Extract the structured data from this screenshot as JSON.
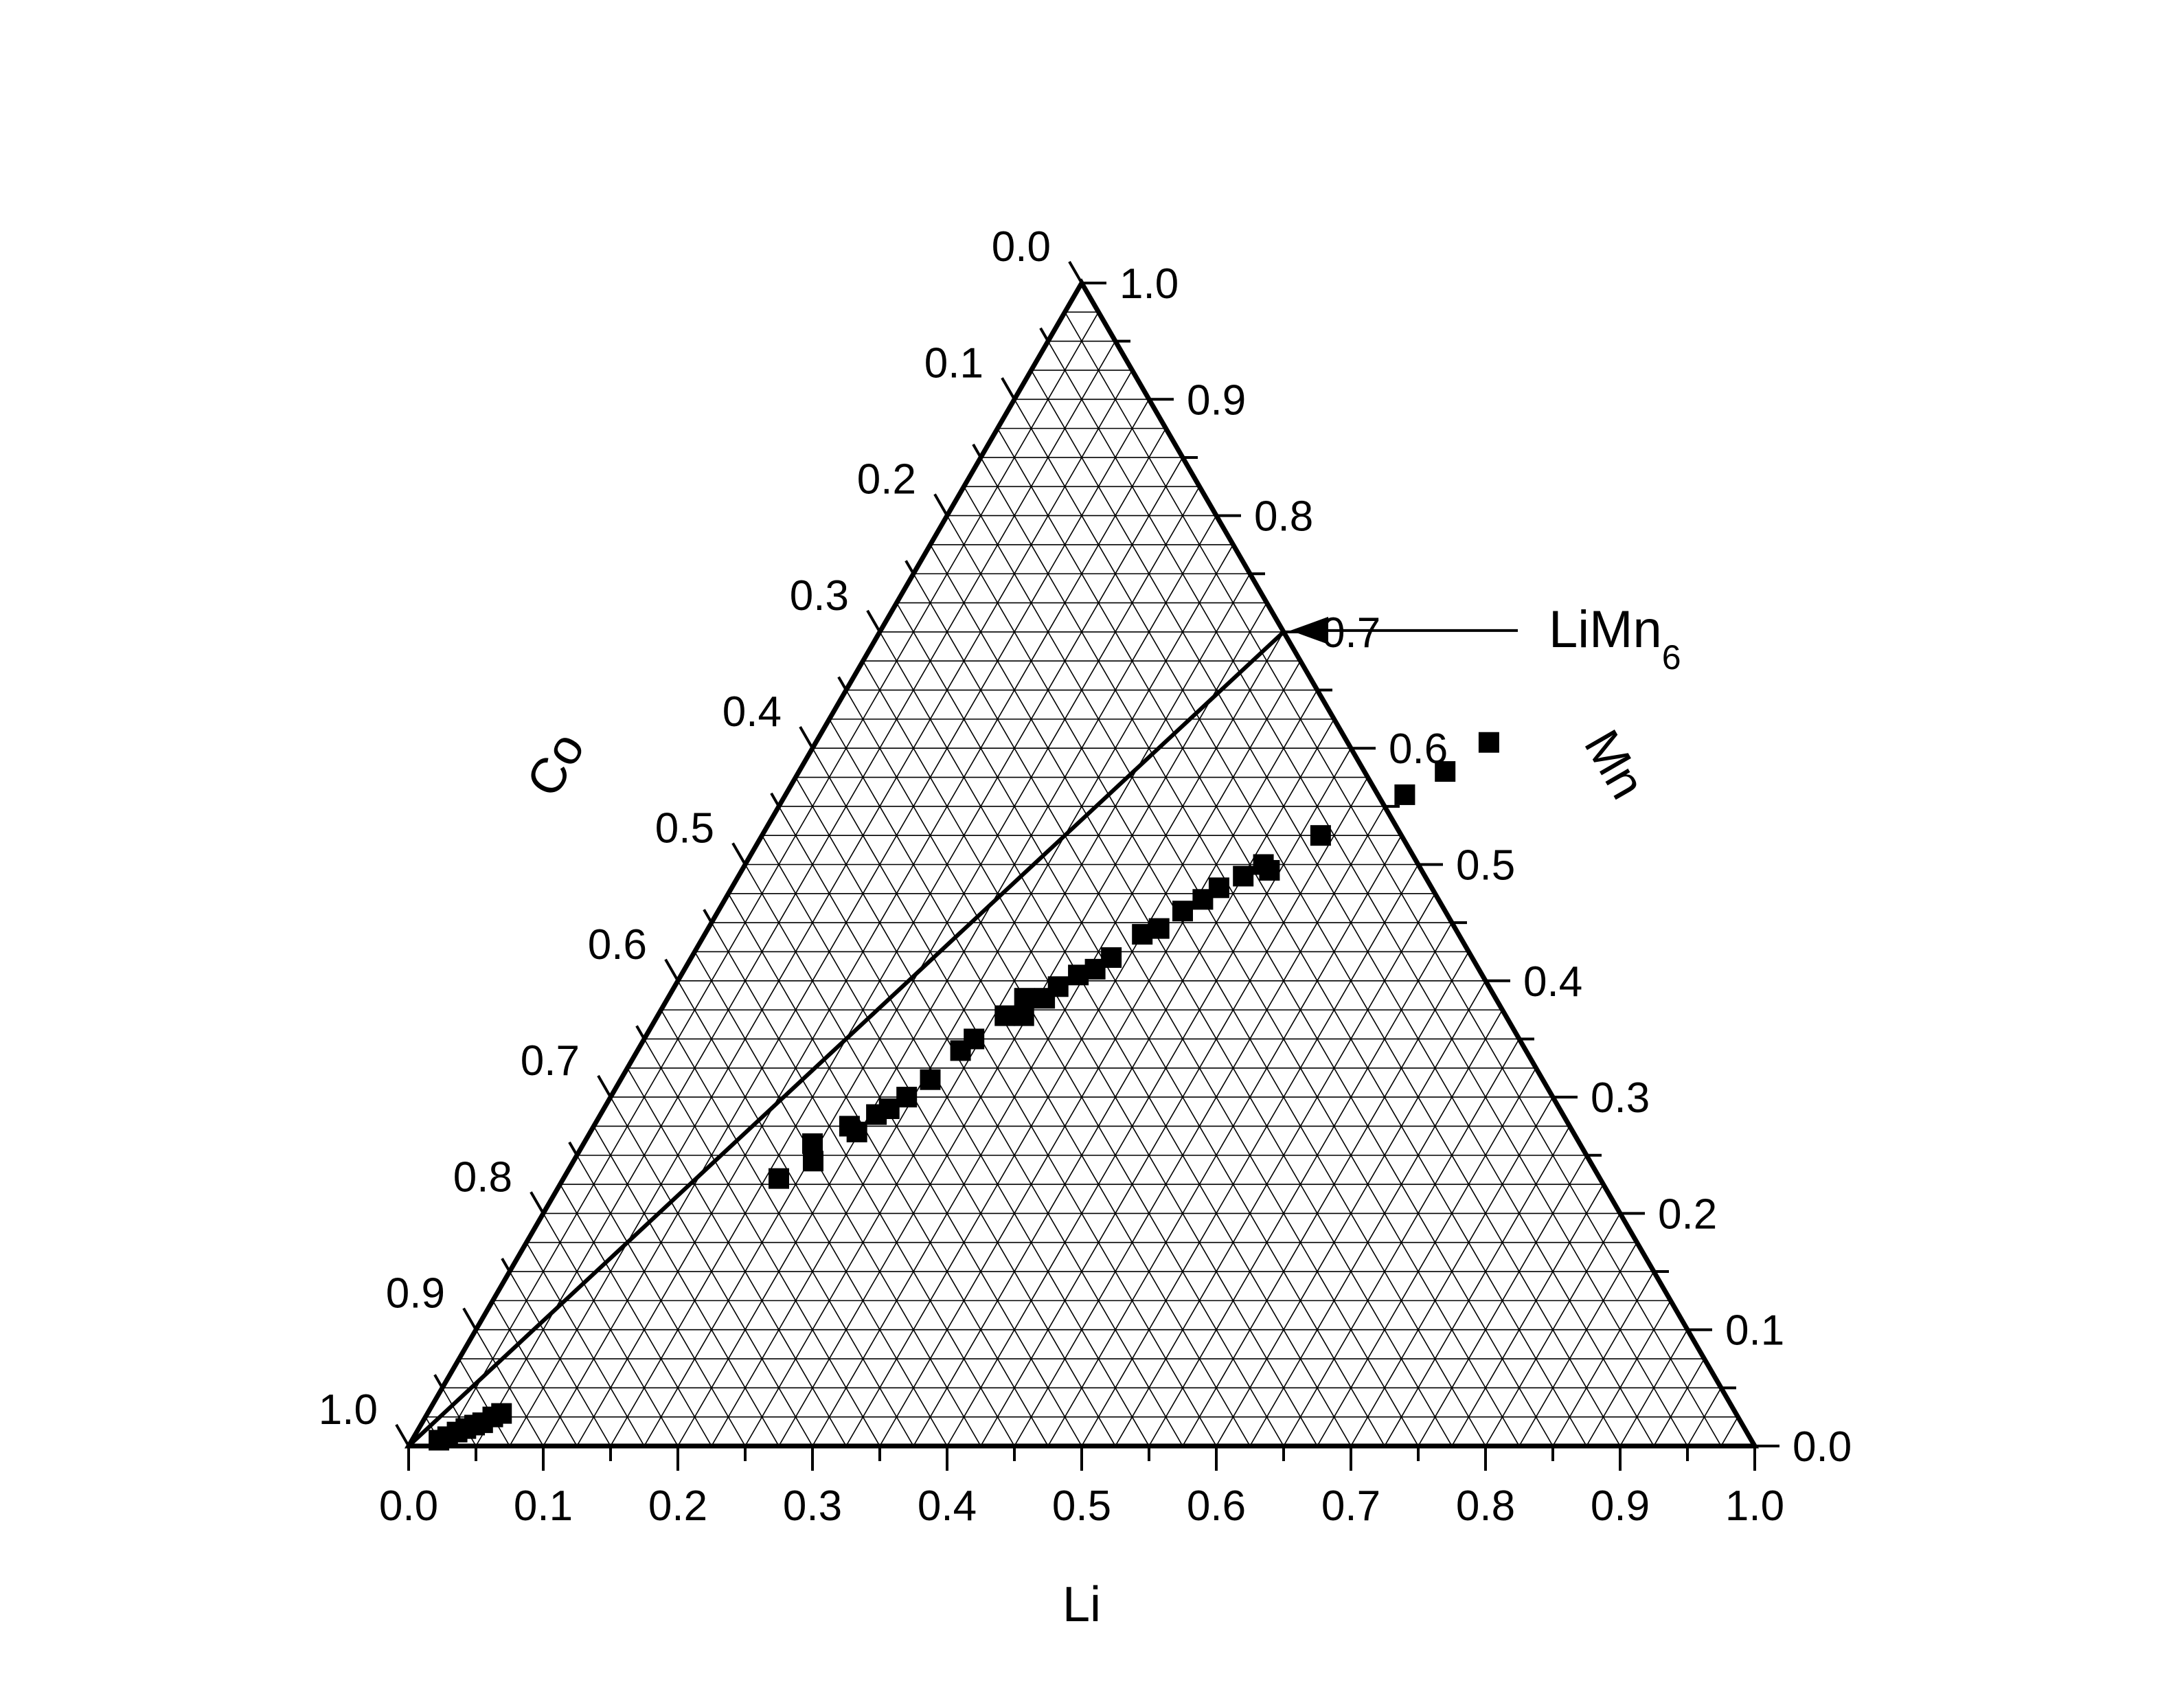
{
  "chart_data": {
    "type": "scatter",
    "subtype": "ternary",
    "title": "",
    "axes": {
      "bottom": {
        "label": "Li",
        "range": [
          0,
          1
        ]
      },
      "right": {
        "label": "Mn",
        "range": [
          0,
          1
        ]
      },
      "left": {
        "label": "Co",
        "range": [
          0,
          1
        ]
      }
    },
    "ticks": [
      "0.0",
      "0.1",
      "0.2",
      "0.3",
      "0.4",
      "0.5",
      "0.6",
      "0.7",
      "0.8",
      "0.9",
      "1.0"
    ],
    "grid": true,
    "grid_step": 0.025,
    "marker": "square",
    "marker_color": "#000000",
    "series": [
      {
        "marker": "filled-square",
        "points": [
          {
            "li": 0.02,
            "mn": 0.005
          },
          {
            "li": 0.025,
            "mn": 0.008
          },
          {
            "li": 0.03,
            "mn": 0.012
          },
          {
            "li": 0.035,
            "mn": 0.015
          },
          {
            "li": 0.04,
            "mn": 0.018
          },
          {
            "li": 0.045,
            "mn": 0.02
          },
          {
            "li": 0.05,
            "mn": 0.025
          },
          {
            "li": 0.055,
            "mn": 0.028
          },
          {
            "li": 0.16,
            "mn": 0.23
          },
          {
            "li": 0.17,
            "mn": 0.26
          },
          {
            "li": 0.178,
            "mn": 0.245
          },
          {
            "li": 0.19,
            "mn": 0.275
          },
          {
            "li": 0.198,
            "mn": 0.27
          },
          {
            "li": 0.205,
            "mn": 0.285
          },
          {
            "li": 0.212,
            "mn": 0.29
          },
          {
            "li": 0.22,
            "mn": 0.3
          },
          {
            "li": 0.23,
            "mn": 0.315
          },
          {
            "li": 0.24,
            "mn": 0.34
          },
          {
            "li": 0.245,
            "mn": 0.35
          },
          {
            "li": 0.258,
            "mn": 0.37
          },
          {
            "li": 0.265,
            "mn": 0.385
          },
          {
            "li": 0.272,
            "mn": 0.37
          },
          {
            "li": 0.28,
            "mn": 0.385
          },
          {
            "li": 0.285,
            "mn": 0.395
          },
          {
            "li": 0.295,
            "mn": 0.405
          },
          {
            "li": 0.305,
            "mn": 0.41
          },
          {
            "li": 0.312,
            "mn": 0.42
          },
          {
            "li": 0.325,
            "mn": 0.44
          },
          {
            "li": 0.335,
            "mn": 0.445
          },
          {
            "li": 0.345,
            "mn": 0.46
          },
          {
            "li": 0.355,
            "mn": 0.47
          },
          {
            "li": 0.362,
            "mn": 0.48
          },
          {
            "li": 0.375,
            "mn": 0.49
          },
          {
            "li": 0.385,
            "mn": 0.5
          },
          {
            "li": 0.392,
            "mn": 0.495
          },
          {
            "li": 0.415,
            "mn": 0.525
          },
          {
            "li": 0.46,
            "mn": 0.56
          },
          {
            "li": 0.48,
            "mn": 0.58
          },
          {
            "li": 0.5,
            "mn": 0.605
          }
        ]
      }
    ],
    "reference_line": {
      "from": {
        "li": 0.0,
        "mn": 0.0
      },
      "to": {
        "li": 0.3,
        "mn": 0.7
      }
    },
    "annotations": [
      {
        "text": "LiMn",
        "subscript": "6",
        "target": {
          "li": 0.3,
          "mn": 0.7
        },
        "arrow": true
      }
    ]
  }
}
